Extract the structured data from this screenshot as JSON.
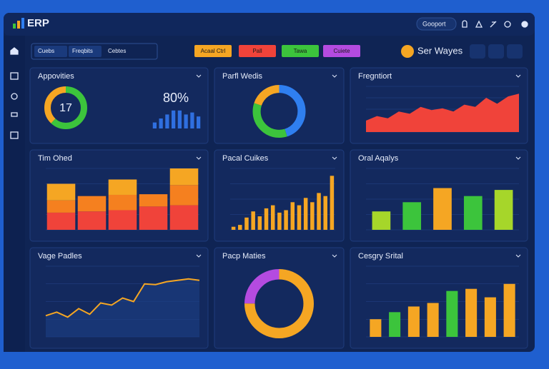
{
  "header": {
    "brand": "ERP",
    "dropdown": "Gooport"
  },
  "toolbar": {
    "tabs": [
      "Cuebs",
      "Freqbits",
      "Cebtes"
    ],
    "buttons": [
      {
        "label": "Acaal Ctrl",
        "color": "#f5a623"
      },
      {
        "label": "Pall",
        "color": "#f0433a"
      },
      {
        "label": "Tawa",
        "color": "#3cc43c"
      },
      {
        "label": "Cuiete",
        "color": "#b44be0"
      }
    ],
    "user": "Ser Wayes"
  },
  "panels": [
    {
      "title": "Appovities",
      "charts": [
        {
          "type": "donut",
          "values": [
            62,
            38
          ],
          "colors": [
            "#3cc43c",
            "#f5a623"
          ],
          "center": 17
        },
        {
          "type": "stat",
          "value": 80,
          "value_label": "80%"
        },
        {
          "type": "bar",
          "values": [
            3,
            5,
            7,
            9,
            9,
            7,
            8,
            6
          ],
          "color": "#2f6fe0",
          "ylim": [
            0,
            10
          ]
        }
      ]
    },
    {
      "title": "Parfl Wedis",
      "charts": [
        {
          "type": "donut",
          "values": [
            45,
            35,
            20
          ],
          "colors": [
            "#2f7ff0",
            "#3cc43c",
            "#f5a623"
          ]
        }
      ]
    },
    {
      "title": "Fregntiort",
      "charts": [
        {
          "type": "area",
          "values": [
            25,
            35,
            30,
            45,
            40,
            55,
            48,
            52,
            45,
            60,
            55,
            75,
            62,
            78,
            84
          ],
          "color": "#f0433a",
          "ylim": [
            0,
            100
          ]
        }
      ]
    },
    {
      "title": "Tim Ohed",
      "charts": [
        {
          "type": "stacked",
          "ylim": [
            0,
            100
          ],
          "series": [
            {
              "color": "#f0433a",
              "values": [
                28,
                30,
                32,
                38,
                40
              ]
            },
            {
              "color": "#f5801f",
              "values": [
                20,
                25,
                25,
                20,
                33
              ]
            },
            {
              "color": "#f5a623",
              "values": [
                27,
                0,
                25,
                0,
                27
              ]
            }
          ]
        }
      ]
    },
    {
      "title": "Pacal Cuikes",
      "charts": [
        {
          "type": "bar",
          "values": [
            5,
            8,
            20,
            30,
            22,
            35,
            40,
            28,
            32,
            45,
            40,
            52,
            45,
            60,
            55,
            88
          ],
          "color": "#f5a623",
          "ylim": [
            0,
            100
          ]
        }
      ]
    },
    {
      "title": "Oral Aqalys",
      "charts": [
        {
          "type": "bar",
          "values": [
            30,
            45,
            68,
            55,
            65
          ],
          "colors": [
            "#a6d62a",
            "#3cc43c",
            "#f5a623",
            "#3cc43c",
            "#a6d62a"
          ],
          "ylim": [
            0,
            100
          ]
        }
      ]
    },
    {
      "title": "Vage Padles",
      "charts": [
        {
          "type": "line",
          "values": [
            30,
            35,
            28,
            40,
            32,
            48,
            45,
            55,
            50,
            75,
            74,
            78,
            80,
            82,
            80
          ],
          "color": "#f5a623",
          "ylim": [
            0,
            100
          ]
        }
      ]
    },
    {
      "title": "Pacp Maties",
      "charts": [
        {
          "type": "donut",
          "values": [
            75,
            25
          ],
          "colors": [
            "#f5a623",
            "#b44be0"
          ]
        }
      ]
    },
    {
      "title": "Cesgry Srital",
      "charts": [
        {
          "type": "bar",
          "values": [
            25,
            35,
            43,
            48,
            65,
            68,
            56,
            75
          ],
          "colors": [
            "#f5a623",
            "#3cc43c",
            "#f5a623",
            "#f5a623",
            "#3cc43c",
            "#f5a623",
            "#f5a623",
            "#f5a623"
          ],
          "ylim": [
            0,
            100
          ]
        }
      ]
    }
  ]
}
